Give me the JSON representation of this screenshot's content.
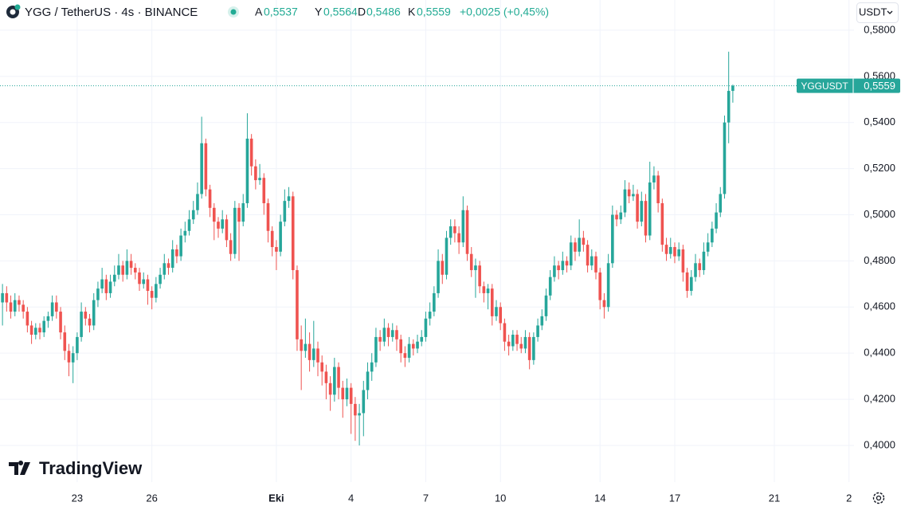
{
  "header": {
    "symbol": "YGG / TetherUS · 4s · BINANCE",
    "ohlc": [
      {
        "label": "A",
        "value": "0,5537"
      },
      {
        "label": "Y",
        "value": "0,5564"
      },
      {
        "label": "D",
        "value": "0,5486"
      },
      {
        "label": "K",
        "value": "0,5559"
      }
    ],
    "change": "+0,0025 (+0,45%)"
  },
  "currency_button": "USDT",
  "logo": "TradingView",
  "chart_data": {
    "type": "candlestick",
    "up_color": "#26a69a",
    "down_color": "#ef5350",
    "grid": true,
    "ylim": [
      0.3841,
      0.5931
    ],
    "yticks": [
      {
        "value": 0.4,
        "label": "0,4000"
      },
      {
        "value": 0.42,
        "label": "0,4200"
      },
      {
        "value": 0.44,
        "label": "0,4400"
      },
      {
        "value": 0.46,
        "label": "0,4600"
      },
      {
        "value": 0.48,
        "label": "0,4800"
      },
      {
        "value": 0.5,
        "label": "0,5000"
      },
      {
        "value": 0.52,
        "label": "0,5200"
      },
      {
        "value": 0.54,
        "label": "0,5400"
      },
      {
        "value": 0.56,
        "label": "0,5600"
      },
      {
        "value": 0.58,
        "label": "0,5800"
      }
    ],
    "xlim": [
      -0.6,
      205.2
    ],
    "xticks": [
      {
        "value": 18,
        "label": "23"
      },
      {
        "value": 36,
        "label": "26"
      },
      {
        "value": 66,
        "label": "Eki"
      },
      {
        "value": 84,
        "label": "4"
      },
      {
        "value": 102,
        "label": "7"
      },
      {
        "value": 120,
        "label": "10"
      },
      {
        "value": 144,
        "label": "14"
      },
      {
        "value": 162,
        "label": "17"
      },
      {
        "value": 186,
        "label": "21"
      },
      {
        "value": 204,
        "label": "2"
      }
    ],
    "last_price": {
      "name": "YGGUSDT",
      "label": "0,5559"
    },
    "candles": [
      [
        0.462,
        0.47,
        0.452,
        0.466
      ],
      [
        0.466,
        0.469,
        0.458,
        0.462
      ],
      [
        0.462,
        0.465,
        0.455,
        0.458
      ],
      [
        0.458,
        0.466,
        0.456,
        0.463
      ],
      [
        0.463,
        0.465,
        0.458,
        0.461
      ],
      [
        0.461,
        0.463,
        0.455,
        0.458
      ],
      [
        0.458,
        0.46,
        0.449,
        0.452
      ],
      [
        0.452,
        0.454,
        0.444,
        0.448
      ],
      [
        0.448,
        0.453,
        0.446,
        0.451
      ],
      [
        0.451,
        0.453,
        0.446,
        0.449
      ],
      [
        0.449,
        0.456,
        0.447,
        0.454
      ],
      [
        0.454,
        0.458,
        0.451,
        0.456
      ],
      [
        0.456,
        0.465,
        0.454,
        0.462
      ],
      [
        0.462,
        0.465,
        0.455,
        0.458
      ],
      [
        0.458,
        0.46,
        0.446,
        0.449
      ],
      [
        0.449,
        0.452,
        0.437,
        0.441
      ],
      [
        0.441,
        0.444,
        0.43,
        0.436
      ],
      [
        0.436,
        0.443,
        0.427,
        0.44
      ],
      [
        0.44,
        0.449,
        0.437,
        0.447
      ],
      [
        0.447,
        0.462,
        0.445,
        0.458
      ],
      [
        0.458,
        0.46,
        0.452,
        0.455
      ],
      [
        0.455,
        0.457,
        0.449,
        0.452
      ],
      [
        0.452,
        0.466,
        0.45,
        0.463
      ],
      [
        0.463,
        0.471,
        0.46,
        0.468
      ],
      [
        0.468,
        0.477,
        0.466,
        0.472
      ],
      [
        0.472,
        0.474,
        0.463,
        0.466
      ],
      [
        0.466,
        0.474,
        0.464,
        0.471
      ],
      [
        0.471,
        0.478,
        0.469,
        0.474
      ],
      [
        0.474,
        0.483,
        0.472,
        0.478
      ],
      [
        0.478,
        0.48,
        0.471,
        0.474
      ],
      [
        0.474,
        0.485,
        0.472,
        0.48
      ],
      [
        0.48,
        0.483,
        0.474,
        0.477
      ],
      [
        0.477,
        0.479,
        0.472,
        0.475
      ],
      [
        0.475,
        0.477,
        0.467,
        0.47
      ],
      [
        0.47,
        0.475,
        0.468,
        0.472
      ],
      [
        0.472,
        0.474,
        0.461,
        0.467
      ],
      [
        0.467,
        0.469,
        0.459,
        0.464
      ],
      [
        0.464,
        0.473,
        0.462,
        0.47
      ],
      [
        0.47,
        0.477,
        0.468,
        0.474
      ],
      [
        0.474,
        0.483,
        0.472,
        0.479
      ],
      [
        0.479,
        0.481,
        0.474,
        0.477
      ],
      [
        0.477,
        0.489,
        0.475,
        0.485
      ],
      [
        0.485,
        0.487,
        0.479,
        0.482
      ],
      [
        0.482,
        0.494,
        0.48,
        0.491
      ],
      [
        0.491,
        0.497,
        0.488,
        0.493
      ],
      [
        0.493,
        0.502,
        0.491,
        0.498
      ],
      [
        0.498,
        0.506,
        0.496,
        0.502
      ],
      [
        0.502,
        0.514,
        0.5,
        0.509
      ],
      [
        0.509,
        0.5425,
        0.507,
        0.531
      ],
      [
        0.531,
        0.533,
        0.508,
        0.511
      ],
      [
        0.511,
        0.513,
        0.499,
        0.503
      ],
      [
        0.503,
        0.505,
        0.489,
        0.497
      ],
      [
        0.497,
        0.499,
        0.49,
        0.494
      ],
      [
        0.494,
        0.502,
        0.492,
        0.498
      ],
      [
        0.498,
        0.5,
        0.486,
        0.489
      ],
      [
        0.489,
        0.492,
        0.48,
        0.483
      ],
      [
        0.483,
        0.506,
        0.481,
        0.503
      ],
      [
        0.503,
        0.505,
        0.48,
        0.497
      ],
      [
        0.497,
        0.509,
        0.495,
        0.505
      ],
      [
        0.505,
        0.544,
        0.503,
        0.533
      ],
      [
        0.533,
        0.535,
        0.517,
        0.521
      ],
      [
        0.521,
        0.524,
        0.511,
        0.515
      ],
      [
        0.515,
        0.522,
        0.513,
        0.516
      ],
      [
        0.516,
        0.518,
        0.5,
        0.505
      ],
      [
        0.505,
        0.507,
        0.488,
        0.493
      ],
      [
        0.493,
        0.495,
        0.482,
        0.486
      ],
      [
        0.486,
        0.489,
        0.476,
        0.484
      ],
      [
        0.484,
        0.5,
        0.482,
        0.497
      ],
      [
        0.497,
        0.511,
        0.495,
        0.506
      ],
      [
        0.506,
        0.512,
        0.503,
        0.508
      ],
      [
        0.508,
        0.51,
        0.472,
        0.476
      ],
      [
        0.476,
        0.478,
        0.441,
        0.446
      ],
      [
        0.446,
        0.452,
        0.424,
        0.441
      ],
      [
        0.441,
        0.455,
        0.438,
        0.444
      ],
      [
        0.444,
        0.449,
        0.432,
        0.437
      ],
      [
        0.437,
        0.454,
        0.434,
        0.442
      ],
      [
        0.442,
        0.445,
        0.43,
        0.436
      ],
      [
        0.436,
        0.439,
        0.426,
        0.432
      ],
      [
        0.432,
        0.435,
        0.42,
        0.427
      ],
      [
        0.427,
        0.43,
        0.415,
        0.422
      ],
      [
        0.422,
        0.438,
        0.419,
        0.434
      ],
      [
        0.434,
        0.436,
        0.42,
        0.425
      ],
      [
        0.425,
        0.428,
        0.412,
        0.42
      ],
      [
        0.42,
        0.429,
        0.417,
        0.425
      ],
      [
        0.425,
        0.427,
        0.405,
        0.418
      ],
      [
        0.418,
        0.421,
        0.402,
        0.413
      ],
      [
        0.413,
        0.418,
        0.4,
        0.414
      ],
      [
        0.414,
        0.428,
        0.404,
        0.424
      ],
      [
        0.424,
        0.436,
        0.42,
        0.432
      ],
      [
        0.432,
        0.44,
        0.428,
        0.436
      ],
      [
        0.436,
        0.451,
        0.434,
        0.447
      ],
      [
        0.447,
        0.45,
        0.441,
        0.445
      ],
      [
        0.445,
        0.455,
        0.443,
        0.451
      ],
      [
        0.451,
        0.453,
        0.443,
        0.447
      ],
      [
        0.447,
        0.453,
        0.445,
        0.45
      ],
      [
        0.45,
        0.452,
        0.441,
        0.446
      ],
      [
        0.446,
        0.448,
        0.436,
        0.44
      ],
      [
        0.44,
        0.443,
        0.434,
        0.438
      ],
      [
        0.438,
        0.447,
        0.436,
        0.444
      ],
      [
        0.444,
        0.446,
        0.439,
        0.442
      ],
      [
        0.442,
        0.448,
        0.44,
        0.445
      ],
      [
        0.445,
        0.45,
        0.443,
        0.447
      ],
      [
        0.447,
        0.458,
        0.445,
        0.455
      ],
      [
        0.455,
        0.462,
        0.452,
        0.458
      ],
      [
        0.458,
        0.469,
        0.456,
        0.466
      ],
      [
        0.466,
        0.485,
        0.464,
        0.48
      ],
      [
        0.48,
        0.483,
        0.47,
        0.474
      ],
      [
        0.474,
        0.493,
        0.472,
        0.49
      ],
      [
        0.49,
        0.498,
        0.487,
        0.495
      ],
      [
        0.495,
        0.498,
        0.488,
        0.492
      ],
      [
        0.492,
        0.495,
        0.483,
        0.488
      ],
      [
        0.488,
        0.508,
        0.486,
        0.502
      ],
      [
        0.502,
        0.504,
        0.48,
        0.483
      ],
      [
        0.483,
        0.486,
        0.473,
        0.476
      ],
      [
        0.476,
        0.481,
        0.464,
        0.478
      ],
      [
        0.478,
        0.48,
        0.466,
        0.469
      ],
      [
        0.469,
        0.471,
        0.462,
        0.466
      ],
      [
        0.466,
        0.47,
        0.459,
        0.468
      ],
      [
        0.468,
        0.47,
        0.452,
        0.456
      ],
      [
        0.456,
        0.463,
        0.454,
        0.46
      ],
      [
        0.46,
        0.462,
        0.45,
        0.453
      ],
      [
        0.453,
        0.455,
        0.441,
        0.445
      ],
      [
        0.445,
        0.448,
        0.439,
        0.443
      ],
      [
        0.443,
        0.45,
        0.441,
        0.448
      ],
      [
        0.448,
        0.45,
        0.441,
        0.444
      ],
      [
        0.444,
        0.447,
        0.44,
        0.442
      ],
      [
        0.442,
        0.45,
        0.44,
        0.447
      ],
      [
        0.447,
        0.449,
        0.433,
        0.437
      ],
      [
        0.437,
        0.449,
        0.435,
        0.447
      ],
      [
        0.447,
        0.455,
        0.445,
        0.452
      ],
      [
        0.452,
        0.459,
        0.45,
        0.456
      ],
      [
        0.456,
        0.468,
        0.454,
        0.465
      ],
      [
        0.465,
        0.476,
        0.463,
        0.473
      ],
      [
        0.473,
        0.482,
        0.471,
        0.478
      ],
      [
        0.478,
        0.48,
        0.472,
        0.476
      ],
      [
        0.476,
        0.484,
        0.474,
        0.48
      ],
      [
        0.48,
        0.482,
        0.475,
        0.478
      ],
      [
        0.478,
        0.491,
        0.476,
        0.488
      ],
      [
        0.488,
        0.49,
        0.48,
        0.484
      ],
      [
        0.484,
        0.498,
        0.482,
        0.49
      ],
      [
        0.49,
        0.493,
        0.484,
        0.487
      ],
      [
        0.487,
        0.489,
        0.475,
        0.478
      ],
      [
        0.478,
        0.485,
        0.476,
        0.482
      ],
      [
        0.482,
        0.484,
        0.472,
        0.475
      ],
      [
        0.475,
        0.477,
        0.459,
        0.463
      ],
      [
        0.463,
        0.466,
        0.455,
        0.46
      ],
      [
        0.46,
        0.483,
        0.458,
        0.479
      ],
      [
        0.479,
        0.504,
        0.477,
        0.5
      ],
      [
        0.5,
        0.502,
        0.495,
        0.498
      ],
      [
        0.498,
        0.504,
        0.496,
        0.501
      ],
      [
        0.501,
        0.515,
        0.499,
        0.511
      ],
      [
        0.511,
        0.514,
        0.505,
        0.508
      ],
      [
        0.508,
        0.513,
        0.506,
        0.509
      ],
      [
        0.509,
        0.511,
        0.494,
        0.497
      ],
      [
        0.497,
        0.51,
        0.495,
        0.506
      ],
      [
        0.506,
        0.509,
        0.488,
        0.491
      ],
      [
        0.491,
        0.523,
        0.489,
        0.514
      ],
      [
        0.514,
        0.521,
        0.511,
        0.517
      ],
      [
        0.517,
        0.519,
        0.501,
        0.505
      ],
      [
        0.505,
        0.507,
        0.484,
        0.487
      ],
      [
        0.487,
        0.49,
        0.48,
        0.483
      ],
      [
        0.483,
        0.49,
        0.481,
        0.486
      ],
      [
        0.486,
        0.488,
        0.479,
        0.482
      ],
      [
        0.482,
        0.488,
        0.48,
        0.485
      ],
      [
        0.485,
        0.487,
        0.471,
        0.475
      ],
      [
        0.475,
        0.477,
        0.464,
        0.467
      ],
      [
        0.467,
        0.476,
        0.465,
        0.473
      ],
      [
        0.473,
        0.483,
        0.471,
        0.479
      ],
      [
        0.479,
        0.481,
        0.473,
        0.476
      ],
      [
        0.476,
        0.488,
        0.474,
        0.484
      ],
      [
        0.484,
        0.492,
        0.482,
        0.488
      ],
      [
        0.488,
        0.497,
        0.486,
        0.494
      ],
      [
        0.494,
        0.505,
        0.492,
        0.501
      ],
      [
        0.501,
        0.512,
        0.499,
        0.509
      ],
      [
        0.509,
        0.543,
        0.507,
        0.54
      ],
      [
        0.54,
        0.5707,
        0.531,
        0.5537
      ],
      [
        0.5537,
        0.5564,
        0.5486,
        0.5559
      ]
    ]
  }
}
